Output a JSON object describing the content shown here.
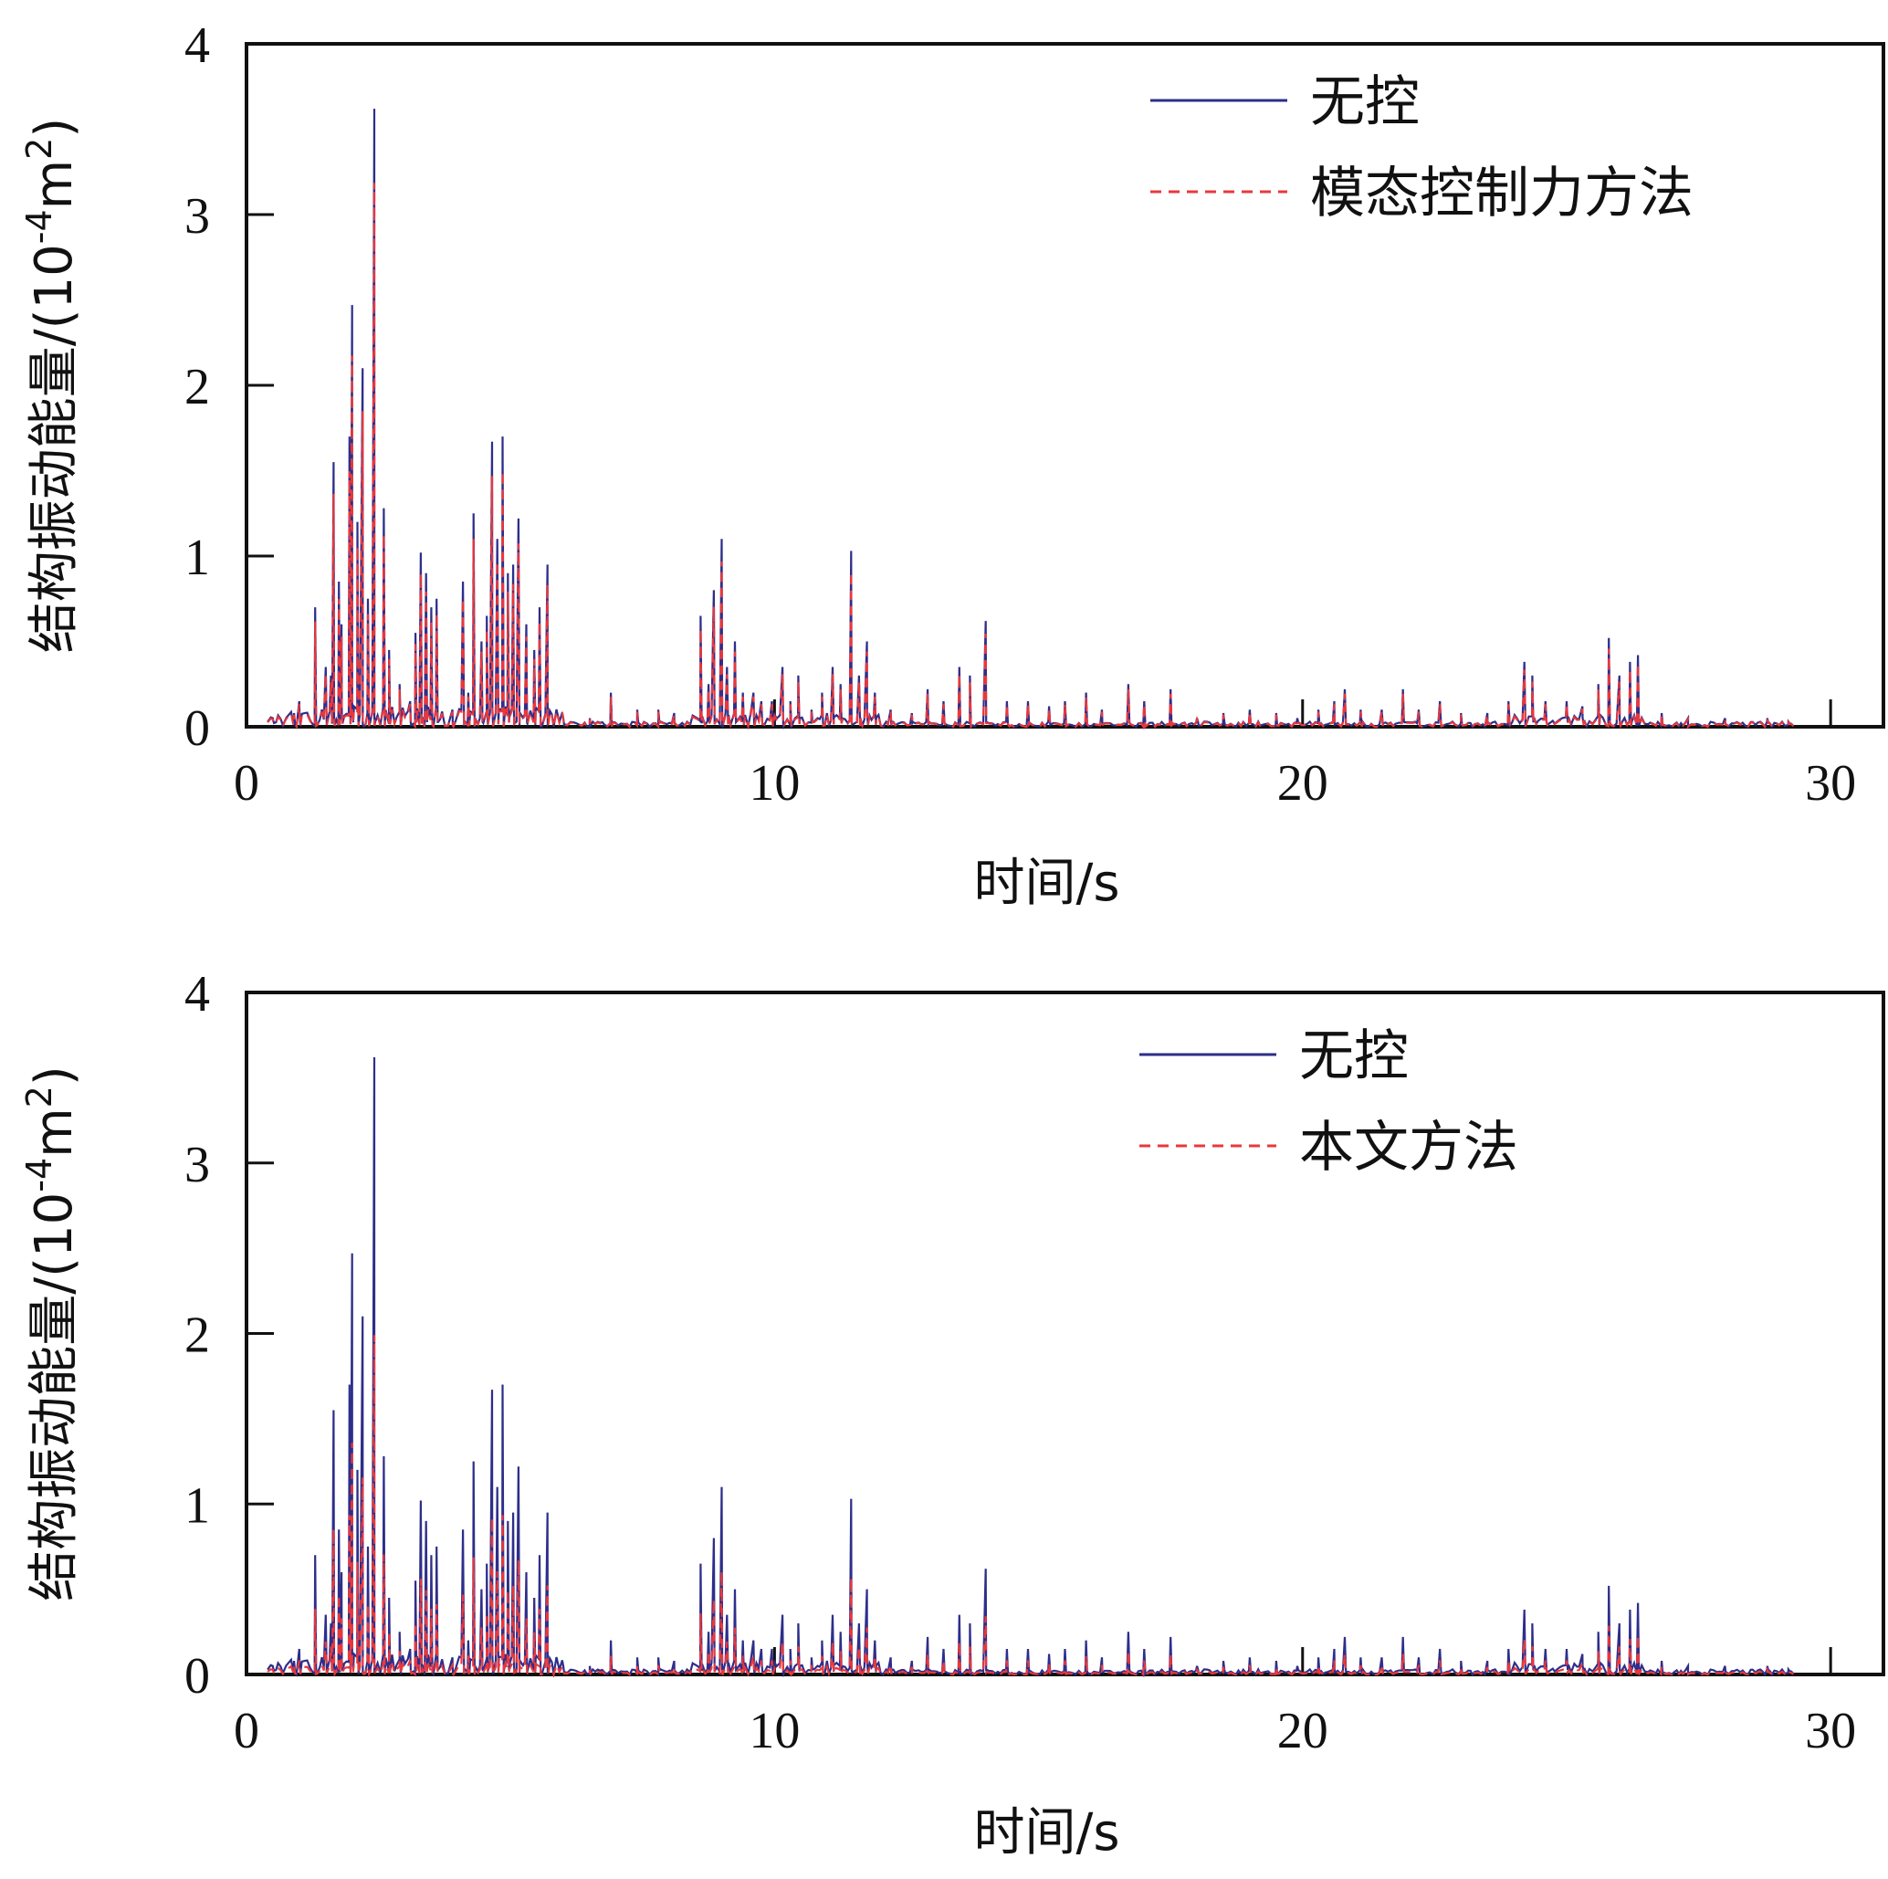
{
  "chart_data": [
    {
      "type": "line",
      "title": "",
      "xlabel": "时间/s",
      "ylabel": "结构振动能量/(10",
      "ylabel_sup1": "-4",
      "ylabel_mid": "m",
      "ylabel_sup2": "2",
      "ylabel_end": ")",
      "xlim": [
        0,
        31
      ],
      "ylim": [
        0,
        4
      ],
      "xticks": [
        0,
        10,
        20,
        30
      ],
      "yticks": [
        0,
        1,
        2,
        3,
        4
      ],
      "legend_position": "top-right",
      "grid": false,
      "series": [
        {
          "name": "无控",
          "color": "#2e2e8a",
          "style": "solid"
        },
        {
          "name": "模态控制力方法",
          "color": "#e8383d",
          "style": "dashed",
          "ratio": 0.88
        }
      ],
      "peaks": [
        [
          0.5,
          0.05
        ],
        [
          0.9,
          0.08
        ],
        [
          1.0,
          0.15
        ],
        [
          1.3,
          0.7
        ],
        [
          1.5,
          0.35
        ],
        [
          1.6,
          0.3
        ],
        [
          1.65,
          1.55
        ],
        [
          1.75,
          0.85
        ],
        [
          1.8,
          0.6
        ],
        [
          1.95,
          1.7
        ],
        [
          2.0,
          2.47
        ],
        [
          2.1,
          1.2
        ],
        [
          2.2,
          2.1
        ],
        [
          2.3,
          0.75
        ],
        [
          2.42,
          3.62
        ],
        [
          2.6,
          1.28
        ],
        [
          2.7,
          0.45
        ],
        [
          2.9,
          0.25
        ],
        [
          3.1,
          0.15
        ],
        [
          3.2,
          0.55
        ],
        [
          3.3,
          1.02
        ],
        [
          3.4,
          0.9
        ],
        [
          3.5,
          0.7
        ],
        [
          3.6,
          0.75
        ],
        [
          3.9,
          0.1
        ],
        [
          4.1,
          0.85
        ],
        [
          4.2,
          0.2
        ],
        [
          4.3,
          1.25
        ],
        [
          4.45,
          0.5
        ],
        [
          4.55,
          0.65
        ],
        [
          4.65,
          1.67
        ],
        [
          4.75,
          1.1
        ],
        [
          4.85,
          1.7
        ],
        [
          4.95,
          0.9
        ],
        [
          5.05,
          0.95
        ],
        [
          5.15,
          1.22
        ],
        [
          5.3,
          0.6
        ],
        [
          5.45,
          0.45
        ],
        [
          5.55,
          0.7
        ],
        [
          5.7,
          0.95
        ],
        [
          6.0,
          0.05
        ],
        [
          6.5,
          0.05
        ],
        [
          6.9,
          0.2
        ],
        [
          7.4,
          0.1
        ],
        [
          7.8,
          0.1
        ],
        [
          8.1,
          0.08
        ],
        [
          8.6,
          0.65
        ],
        [
          8.75,
          0.25
        ],
        [
          8.85,
          0.8
        ],
        [
          9.0,
          1.1
        ],
        [
          9.1,
          0.35
        ],
        [
          9.25,
          0.5
        ],
        [
          9.4,
          0.2
        ],
        [
          9.6,
          0.2
        ],
        [
          9.75,
          0.15
        ],
        [
          9.95,
          0.15
        ],
        [
          10.15,
          0.35
        ],
        [
          10.3,
          0.15
        ],
        [
          10.45,
          0.3
        ],
        [
          10.7,
          0.1
        ],
        [
          10.9,
          0.2
        ],
        [
          11.1,
          0.35
        ],
        [
          11.25,
          0.25
        ],
        [
          11.45,
          1.03
        ],
        [
          11.6,
          0.3
        ],
        [
          11.75,
          0.5
        ],
        [
          11.9,
          0.2
        ],
        [
          12.2,
          0.1
        ],
        [
          12.6,
          0.08
        ],
        [
          12.9,
          0.22
        ],
        [
          13.2,
          0.15
        ],
        [
          13.5,
          0.35
        ],
        [
          13.7,
          0.3
        ],
        [
          14.0,
          0.62
        ],
        [
          14.4,
          0.15
        ],
        [
          14.8,
          0.15
        ],
        [
          15.2,
          0.12
        ],
        [
          15.5,
          0.15
        ],
        [
          15.9,
          0.2
        ],
        [
          16.2,
          0.1
        ],
        [
          16.7,
          0.25
        ],
        [
          17.0,
          0.15
        ],
        [
          17.5,
          0.22
        ],
        [
          18.0,
          0.05
        ],
        [
          18.5,
          0.08
        ],
        [
          19.0,
          0.1
        ],
        [
          19.5,
          0.08
        ],
        [
          19.9,
          0.05
        ],
        [
          20.3,
          0.1
        ],
        [
          20.6,
          0.15
        ],
        [
          20.8,
          0.22
        ],
        [
          21.1,
          0.1
        ],
        [
          21.5,
          0.1
        ],
        [
          21.9,
          0.22
        ],
        [
          22.2,
          0.1
        ],
        [
          22.6,
          0.15
        ],
        [
          23.0,
          0.08
        ],
        [
          23.5,
          0.08
        ],
        [
          23.9,
          0.15
        ],
        [
          24.2,
          0.38
        ],
        [
          24.35,
          0.3
        ],
        [
          24.6,
          0.15
        ],
        [
          25.0,
          0.15
        ],
        [
          25.3,
          0.12
        ],
        [
          25.6,
          0.25
        ],
        [
          25.8,
          0.52
        ],
        [
          26.0,
          0.3
        ],
        [
          26.2,
          0.38
        ],
        [
          26.35,
          0.42
        ],
        [
          26.8,
          0.08
        ],
        [
          27.3,
          0.05
        ],
        [
          28.0,
          0.05
        ],
        [
          28.8,
          0.05
        ],
        [
          29.2,
          0.03
        ]
      ]
    },
    {
      "type": "line",
      "title": "",
      "xlabel": "时间/s",
      "ylabel": "结构振动能量/(10",
      "ylabel_sup1": "-4",
      "ylabel_mid": "m",
      "ylabel_sup2": "2",
      "ylabel_end": ")",
      "xlim": [
        0,
        31
      ],
      "ylim": [
        0,
        4
      ],
      "xticks": [
        0,
        10,
        20,
        30
      ],
      "yticks": [
        0,
        1,
        2,
        3,
        4
      ],
      "legend_position": "top-right",
      "grid": false,
      "series": [
        {
          "name": "无控",
          "color": "#2e2e8a",
          "style": "solid"
        },
        {
          "name": "本文方法",
          "color": "#e8383d",
          "style": "dashed",
          "ratio": 0.55
        }
      ],
      "peaks": [
        [
          0.5,
          0.05
        ],
        [
          0.9,
          0.08
        ],
        [
          1.0,
          0.15
        ],
        [
          1.3,
          0.7
        ],
        [
          1.5,
          0.35
        ],
        [
          1.6,
          0.3
        ],
        [
          1.65,
          1.55
        ],
        [
          1.75,
          0.85
        ],
        [
          1.8,
          0.6
        ],
        [
          1.95,
          1.7
        ],
        [
          2.0,
          2.47
        ],
        [
          2.1,
          1.2
        ],
        [
          2.2,
          2.1
        ],
        [
          2.3,
          0.75
        ],
        [
          2.42,
          3.62
        ],
        [
          2.6,
          1.28
        ],
        [
          2.7,
          0.45
        ],
        [
          2.9,
          0.25
        ],
        [
          3.1,
          0.15
        ],
        [
          3.2,
          0.55
        ],
        [
          3.3,
          1.02
        ],
        [
          3.4,
          0.9
        ],
        [
          3.5,
          0.7
        ],
        [
          3.6,
          0.75
        ],
        [
          3.9,
          0.1
        ],
        [
          4.1,
          0.85
        ],
        [
          4.2,
          0.2
        ],
        [
          4.3,
          1.25
        ],
        [
          4.45,
          0.5
        ],
        [
          4.55,
          0.65
        ],
        [
          4.65,
          1.67
        ],
        [
          4.75,
          1.1
        ],
        [
          4.85,
          1.7
        ],
        [
          4.95,
          0.9
        ],
        [
          5.05,
          0.95
        ],
        [
          5.15,
          1.22
        ],
        [
          5.3,
          0.6
        ],
        [
          5.45,
          0.45
        ],
        [
          5.55,
          0.7
        ],
        [
          5.7,
          0.95
        ],
        [
          6.0,
          0.05
        ],
        [
          6.5,
          0.05
        ],
        [
          6.9,
          0.2
        ],
        [
          7.4,
          0.1
        ],
        [
          7.8,
          0.1
        ],
        [
          8.1,
          0.08
        ],
        [
          8.6,
          0.65
        ],
        [
          8.75,
          0.25
        ],
        [
          8.85,
          0.8
        ],
        [
          9.0,
          1.1
        ],
        [
          9.1,
          0.35
        ],
        [
          9.25,
          0.5
        ],
        [
          9.4,
          0.2
        ],
        [
          9.6,
          0.2
        ],
        [
          9.75,
          0.15
        ],
        [
          9.95,
          0.15
        ],
        [
          10.15,
          0.35
        ],
        [
          10.3,
          0.15
        ],
        [
          10.45,
          0.3
        ],
        [
          10.7,
          0.1
        ],
        [
          10.9,
          0.2
        ],
        [
          11.1,
          0.35
        ],
        [
          11.25,
          0.25
        ],
        [
          11.45,
          1.03
        ],
        [
          11.6,
          0.3
        ],
        [
          11.75,
          0.5
        ],
        [
          11.9,
          0.2
        ],
        [
          12.2,
          0.1
        ],
        [
          12.6,
          0.08
        ],
        [
          12.9,
          0.22
        ],
        [
          13.2,
          0.15
        ],
        [
          13.5,
          0.35
        ],
        [
          13.7,
          0.3
        ],
        [
          14.0,
          0.62
        ],
        [
          14.4,
          0.15
        ],
        [
          14.8,
          0.15
        ],
        [
          15.2,
          0.12
        ],
        [
          15.5,
          0.15
        ],
        [
          15.9,
          0.2
        ],
        [
          16.2,
          0.1
        ],
        [
          16.7,
          0.25
        ],
        [
          17.0,
          0.15
        ],
        [
          17.5,
          0.22
        ],
        [
          18.0,
          0.05
        ],
        [
          18.5,
          0.08
        ],
        [
          19.0,
          0.1
        ],
        [
          19.5,
          0.08
        ],
        [
          19.9,
          0.05
        ],
        [
          20.3,
          0.1
        ],
        [
          20.6,
          0.15
        ],
        [
          20.8,
          0.22
        ],
        [
          21.1,
          0.1
        ],
        [
          21.5,
          0.1
        ],
        [
          21.9,
          0.22
        ],
        [
          22.2,
          0.1
        ],
        [
          22.6,
          0.15
        ],
        [
          23.0,
          0.08
        ],
        [
          23.5,
          0.08
        ],
        [
          23.9,
          0.15
        ],
        [
          24.2,
          0.38
        ],
        [
          24.35,
          0.3
        ],
        [
          24.6,
          0.15
        ],
        [
          25.0,
          0.15
        ],
        [
          25.3,
          0.12
        ],
        [
          25.6,
          0.25
        ],
        [
          25.8,
          0.52
        ],
        [
          26.0,
          0.3
        ],
        [
          26.2,
          0.38
        ],
        [
          26.35,
          0.42
        ],
        [
          26.8,
          0.08
        ],
        [
          27.3,
          0.05
        ],
        [
          28.0,
          0.05
        ],
        [
          28.8,
          0.05
        ],
        [
          29.2,
          0.03
        ]
      ]
    }
  ]
}
